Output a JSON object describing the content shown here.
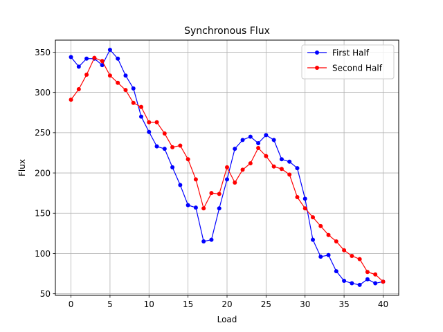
{
  "chart_data": {
    "type": "line",
    "title": "Synchronous Flux",
    "xlabel": "Load",
    "ylabel": "Flux",
    "xlim": [
      -2,
      42
    ],
    "ylim": [
      48,
      365
    ],
    "xticks": [
      0,
      5,
      10,
      15,
      20,
      25,
      30,
      35,
      40
    ],
    "yticks": [
      50,
      100,
      150,
      200,
      250,
      300,
      350
    ],
    "grid": true,
    "legend_position": "top-right",
    "x": [
      0,
      1,
      2,
      3,
      4,
      5,
      6,
      7,
      8,
      9,
      10,
      11,
      12,
      13,
      14,
      15,
      16,
      17,
      18,
      19,
      20,
      21,
      22,
      23,
      24,
      25,
      26,
      27,
      28,
      29,
      30,
      31,
      32,
      33,
      34,
      35,
      36,
      37,
      38,
      39,
      40
    ],
    "series": [
      {
        "name": "First Half",
        "color": "#0000ff",
        "marker": "circle",
        "values": [
          344,
          332,
          342,
          342,
          334,
          353,
          342,
          321,
          305,
          270,
          251,
          233,
          230,
          207,
          185,
          160,
          157,
          115,
          117,
          156,
          192,
          230,
          241,
          245,
          237,
          247,
          241,
          217,
          214,
          206,
          168,
          117,
          96,
          98,
          78,
          66,
          63,
          61,
          68,
          63,
          65
        ]
      },
      {
        "name": "Second Half",
        "color": "#ff0000",
        "marker": "circle",
        "values": [
          291,
          304,
          322,
          343,
          339,
          321,
          312,
          303,
          287,
          282,
          263,
          263,
          249,
          232,
          234,
          217,
          192,
          156,
          175,
          174,
          207,
          188,
          204,
          212,
          231,
          221,
          208,
          205,
          198,
          170,
          156,
          145,
          134,
          123,
          115,
          104,
          97,
          93,
          77,
          74,
          65
        ]
      }
    ]
  }
}
